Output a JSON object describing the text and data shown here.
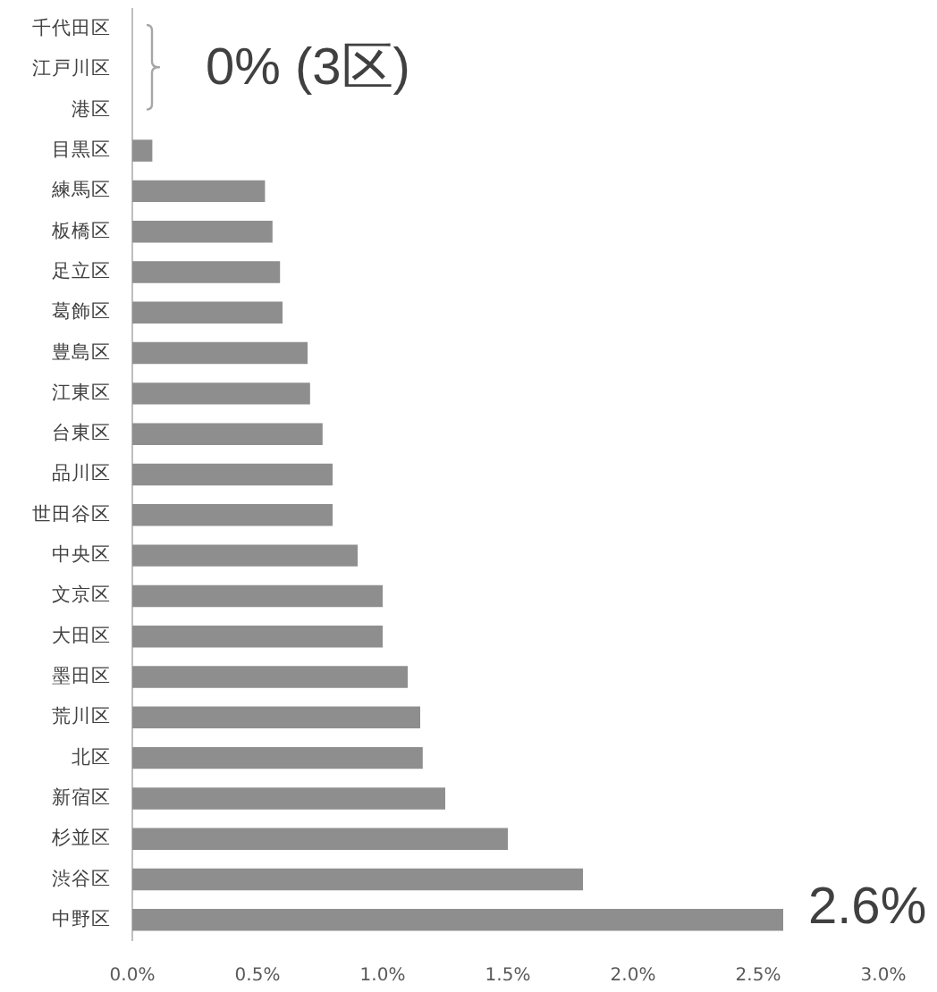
{
  "chart_data": {
    "type": "bar",
    "orientation": "horizontal",
    "categories": [
      "千代田区",
      "江戸川区",
      "港区",
      "目黒区",
      "練馬区",
      "板橋区",
      "足立区",
      "葛飾区",
      "豊島区",
      "江東区",
      "台東区",
      "品川区",
      "世田谷区",
      "中央区",
      "文京区",
      "大田区",
      "墨田区",
      "荒川区",
      "北区",
      "新宿区",
      "杉並区",
      "渋谷区",
      "中野区"
    ],
    "values": [
      0,
      0,
      0,
      0.08,
      0.53,
      0.56,
      0.59,
      0.6,
      0.7,
      0.71,
      0.76,
      0.8,
      0.8,
      0.9,
      1.0,
      1.0,
      1.1,
      1.15,
      1.16,
      1.25,
      1.5,
      1.8,
      2.6
    ],
    "color": "#8e8e8e",
    "xlim": [
      0,
      3
    ],
    "xticks": [
      {
        "value": 0,
        "label": "0.0%"
      },
      {
        "value": 0.5,
        "label": "0.5%"
      },
      {
        "value": 1,
        "label": "1.0%"
      },
      {
        "value": 1.5,
        "label": "1.5%"
      },
      {
        "value": 2,
        "label": "2.0%"
      },
      {
        "value": 2.5,
        "label": "2.5%"
      },
      {
        "value": 3,
        "label": "3.0%"
      }
    ],
    "grid": false,
    "legend": false,
    "value_labels": [
      null,
      null,
      null,
      null,
      null,
      null,
      null,
      null,
      null,
      null,
      null,
      null,
      null,
      null,
      null,
      null,
      null,
      null,
      null,
      null,
      null,
      null,
      "2.6%"
    ],
    "annotations": [
      {
        "text": "0% (3区)",
        "x": 0,
        "y": "江戸川区"
      }
    ]
  }
}
